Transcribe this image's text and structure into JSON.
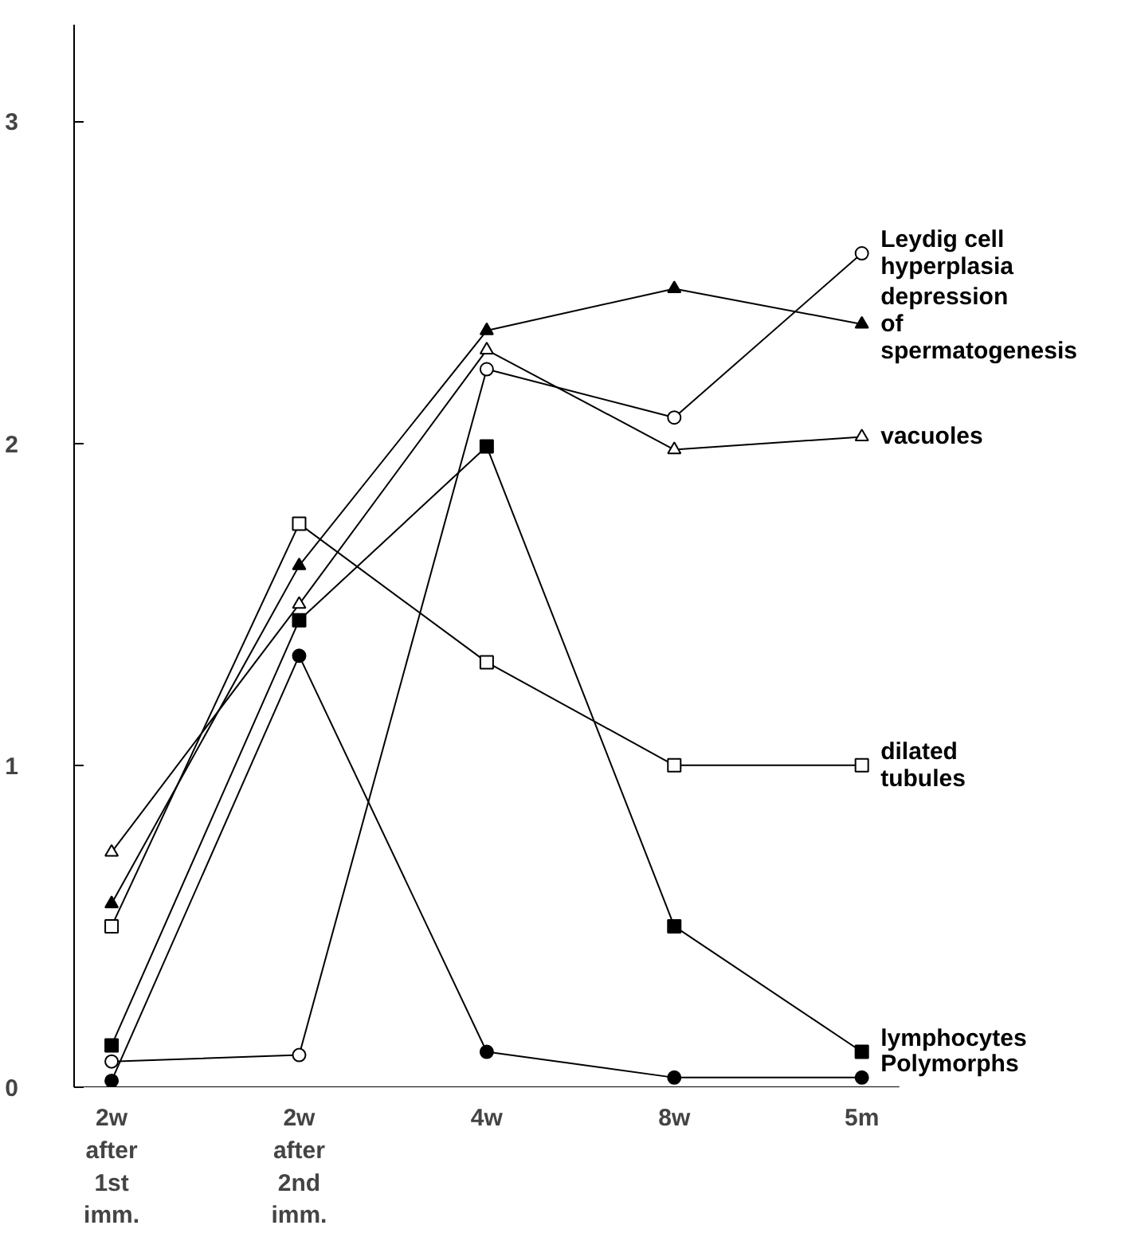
{
  "chart_data": {
    "type": "line",
    "categories": [
      "2w after 1st imm.",
      "2w after 2nd imm.",
      "4w",
      "8w",
      "5m"
    ],
    "series": [
      {
        "name": "Leydig cell hyperplasia",
        "color": "#000000",
        "marker": "circle_open",
        "values": [
          0.08,
          0.1,
          2.23,
          2.08,
          2.59
        ]
      },
      {
        "name": "depression of spermatogenesis",
        "color": "#000000",
        "marker": "triangle",
        "values": [
          0.57,
          1.62,
          2.35,
          2.48,
          2.37
        ]
      },
      {
        "name": "vacuoles",
        "color": "#000000",
        "marker": "triangle_open",
        "values": [
          0.73,
          1.5,
          2.29,
          1.98,
          2.02
        ]
      },
      {
        "name": "dilated tubules",
        "color": "#000000",
        "marker": "square_open",
        "values": [
          0.5,
          1.75,
          1.32,
          1.0,
          1.0
        ]
      },
      {
        "name": "lymphocytes",
        "color": "#000000",
        "marker": "square",
        "values": [
          0.13,
          1.45,
          1.99,
          0.5,
          0.11
        ]
      },
      {
        "name": "Polymorphs",
        "color": "#000000",
        "marker": "circle",
        "values": [
          0.02,
          1.34,
          0.11,
          0.03,
          0.03
        ]
      }
    ],
    "ylim": [
      0,
      3.3
    ],
    "yticks": [
      0,
      1,
      2,
      3
    ],
    "grid": false,
    "legend": false,
    "line_style": "solid"
  }
}
